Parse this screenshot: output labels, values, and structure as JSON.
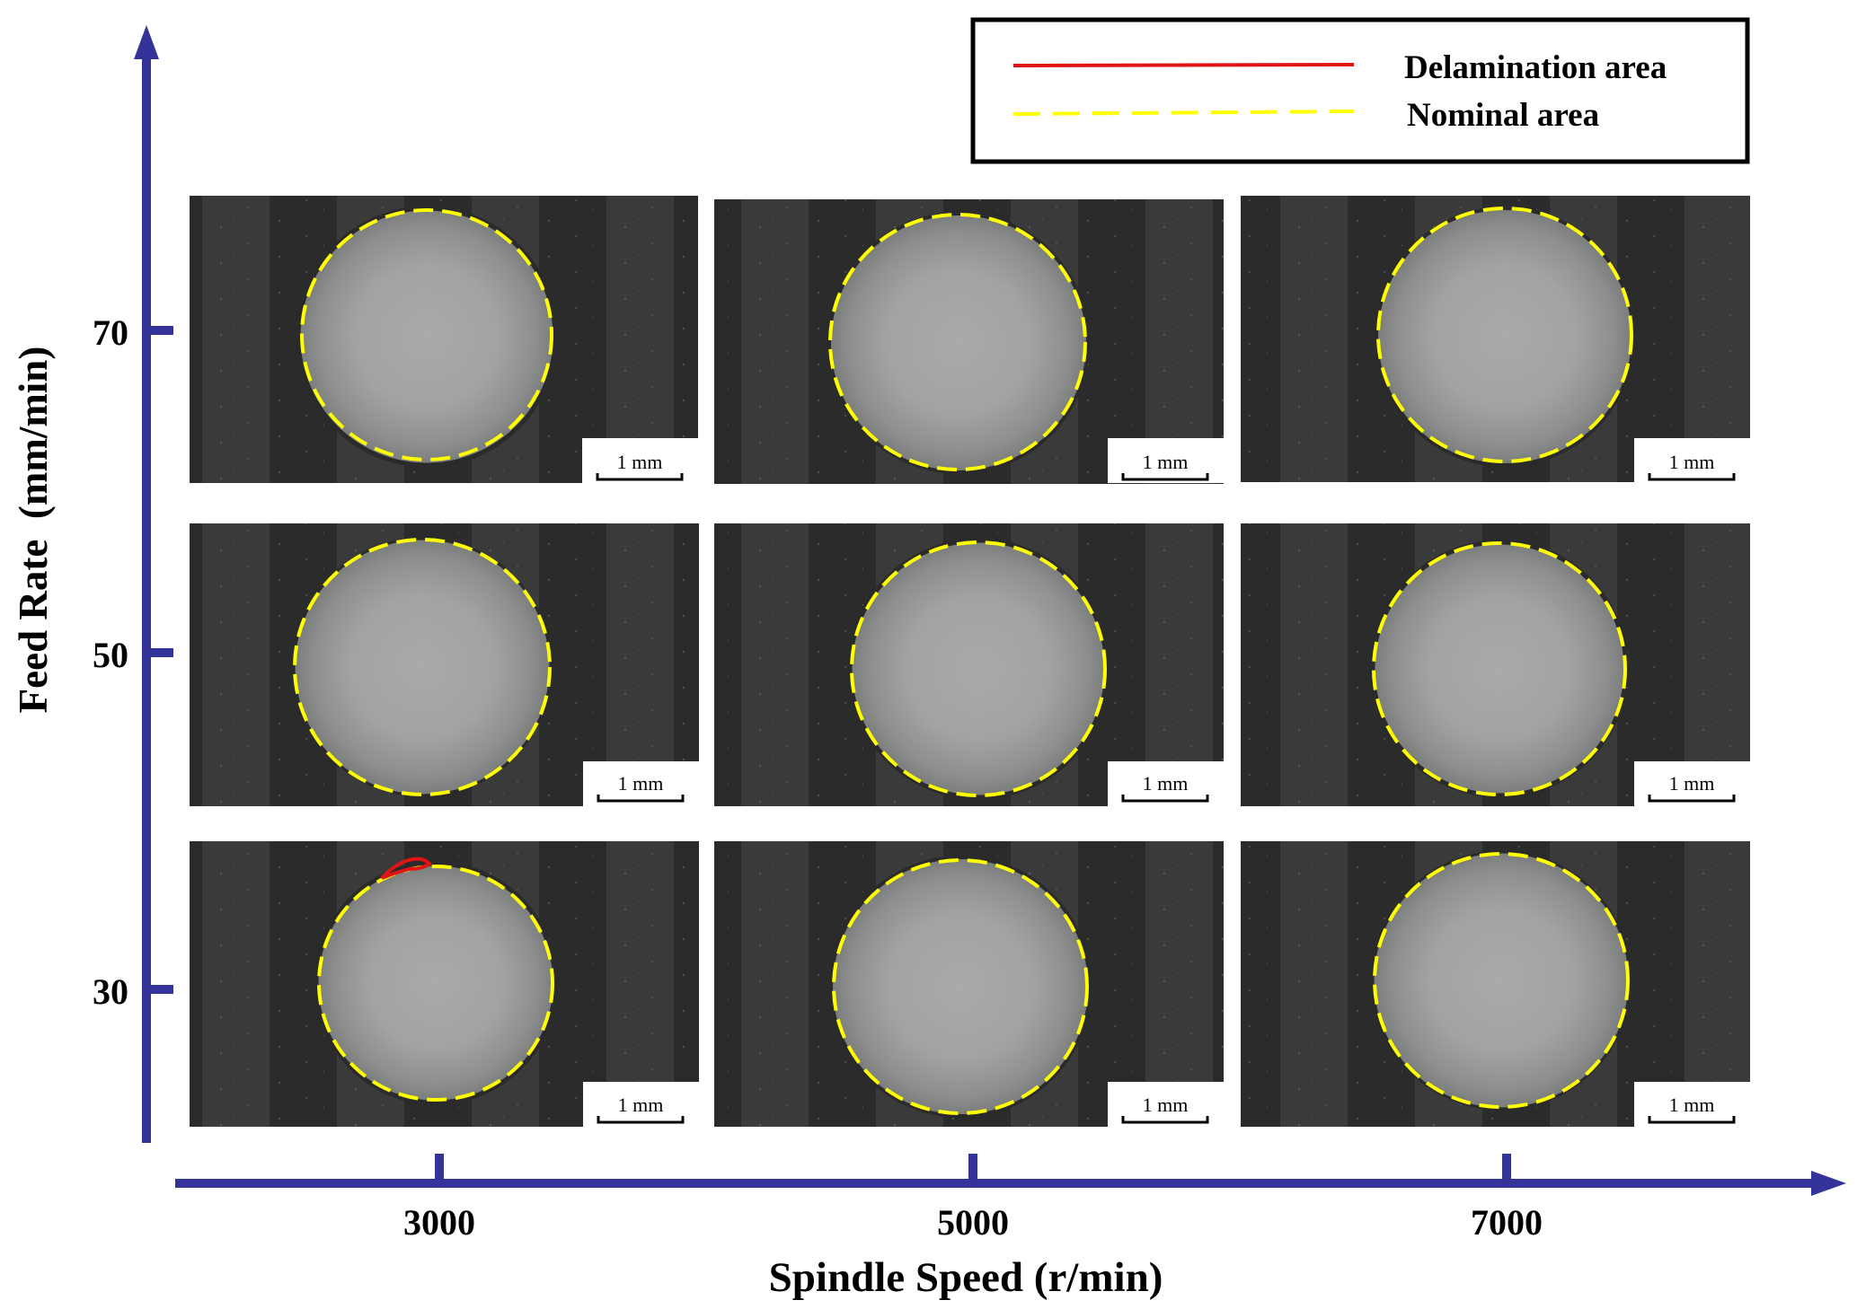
{
  "legend": {
    "delamination_label": "Delamination area",
    "nominal_label": "Nominal area",
    "delamination_color": "#e01414",
    "nominal_color": "#ffff00"
  },
  "axes": {
    "x_label": "Spindle Speed (r/min)",
    "y_label": "Feed Rate  (mm/min)",
    "x_ticks": [
      "3000",
      "5000",
      "7000"
    ],
    "y_ticks": [
      "70",
      "50",
      "30"
    ],
    "axis_color": "#33339a"
  },
  "scale_bar_label": "1 mm",
  "panels": [
    {
      "feed_rate": "70",
      "spindle_speed": "3000"
    },
    {
      "feed_rate": "70",
      "spindle_speed": "5000"
    },
    {
      "feed_rate": "70",
      "spindle_speed": "7000"
    },
    {
      "feed_rate": "50",
      "spindle_speed": "3000"
    },
    {
      "feed_rate": "50",
      "spindle_speed": "5000"
    },
    {
      "feed_rate": "50",
      "spindle_speed": "7000"
    },
    {
      "feed_rate": "30",
      "spindle_speed": "3000",
      "delamination": true
    },
    {
      "feed_rate": "30",
      "spindle_speed": "5000"
    },
    {
      "feed_rate": "30",
      "spindle_speed": "7000"
    }
  ]
}
